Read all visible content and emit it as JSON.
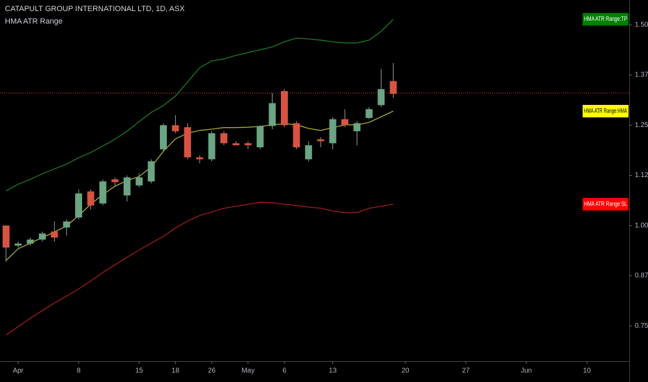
{
  "chart_data": {
    "type": "candlestick",
    "title": "CATAPULT GROUP INTERNATIONAL LTD, 1D, ASX",
    "subtitle": "HMA ATR Range",
    "up_color": "#6ba583",
    "down_color": "#d75442",
    "open": [
      1.0,
      0.95,
      0.955,
      0.965,
      0.985,
      0.995,
      1.02,
      1.085,
      1.055,
      1.115,
      1.075,
      1.1,
      1.11,
      1.19,
      1.25,
      1.245,
      1.17,
      1.165,
      1.23,
      1.205,
      1.205,
      1.195,
      1.248,
      1.335,
      1.255,
      1.165,
      1.215,
      1.205,
      1.265,
      1.235,
      1.268,
      1.3,
      1.36
    ],
    "high": [
      1.0,
      0.96,
      0.97,
      0.985,
      1.01,
      1.015,
      1.09,
      1.09,
      1.115,
      1.12,
      1.125,
      1.13,
      1.165,
      1.255,
      1.275,
      1.255,
      1.175,
      1.235,
      1.235,
      1.21,
      1.21,
      1.25,
      1.33,
      1.34,
      1.26,
      1.21,
      1.22,
      1.27,
      1.29,
      1.26,
      1.295,
      1.39,
      1.405
    ],
    "low": [
      0.91,
      0.945,
      0.95,
      0.96,
      0.96,
      0.975,
      1.015,
      1.04,
      1.05,
      1.1,
      1.06,
      1.095,
      1.105,
      1.185,
      1.23,
      1.165,
      1.155,
      1.16,
      1.2,
      1.2,
      1.19,
      1.19,
      1.24,
      1.245,
      1.19,
      1.16,
      1.195,
      1.19,
      1.245,
      1.2,
      1.265,
      1.295,
      1.318
    ],
    "close": [
      0.945,
      0.955,
      0.965,
      0.98,
      0.97,
      1.01,
      1.08,
      1.05,
      1.11,
      1.108,
      1.12,
      1.12,
      1.16,
      1.25,
      1.235,
      1.17,
      1.165,
      1.23,
      1.205,
      1.2,
      1.2,
      1.248,
      1.305,
      1.25,
      1.195,
      1.2,
      1.21,
      1.265,
      1.25,
      1.255,
      1.29,
      1.34,
      1.328
    ],
    "series": [
      {
        "name": "HMA ATR Range:TP",
        "color": "#1e7a1e",
        "label_color": "#008000",
        "label_text_color": "#ffffff",
        "values": [
          1.086,
          1.103,
          1.115,
          1.129,
          1.141,
          1.153,
          1.169,
          1.182,
          1.198,
          1.215,
          1.235,
          1.259,
          1.282,
          1.299,
          1.323,
          1.358,
          1.393,
          1.41,
          1.415,
          1.424,
          1.431,
          1.438,
          1.445,
          1.458,
          1.467,
          1.465,
          1.462,
          1.458,
          1.455,
          1.455,
          1.462,
          1.484,
          1.514
        ]
      },
      {
        "name": "HMA ATR Range:HMA",
        "color": "#a8a832",
        "label_color": "#ffff00",
        "label_text_color": "#000000",
        "values": [
          0.913,
          0.942,
          0.956,
          0.97,
          0.984,
          0.999,
          1.025,
          1.053,
          1.077,
          1.098,
          1.112,
          1.122,
          1.146,
          1.185,
          1.216,
          1.23,
          1.237,
          1.24,
          1.244,
          1.244,
          1.245,
          1.247,
          1.251,
          1.254,
          1.251,
          1.242,
          1.237,
          1.244,
          1.251,
          1.251,
          1.257,
          1.271,
          1.285
        ]
      },
      {
        "name": "HMA ATR Range:SL",
        "color": "#a01c1c",
        "label_color": "#ff0000",
        "label_text_color": "#ffffff",
        "values": [
          0.727,
          0.748,
          0.769,
          0.788,
          0.807,
          0.824,
          0.842,
          0.862,
          0.883,
          0.902,
          0.921,
          0.939,
          0.956,
          0.973,
          0.994,
          1.011,
          1.025,
          1.034,
          1.043,
          1.048,
          1.053,
          1.058,
          1.057,
          1.053,
          1.05,
          1.046,
          1.043,
          1.036,
          1.032,
          1.032,
          1.043,
          1.048,
          1.053
        ]
      }
    ],
    "price_line": 1.33,
    "price_line_color": "#d75442",
    "xlim": [
      -0.5,
      51.5
    ],
    "xticks": [
      {
        "value": 1,
        "label": "Apr"
      },
      {
        "value": 6,
        "label": "8"
      },
      {
        "value": 11,
        "label": "15"
      },
      {
        "value": 14,
        "label": "18"
      },
      {
        "value": 17,
        "label": "26"
      },
      {
        "value": 20,
        "label": "May"
      },
      {
        "value": 23,
        "label": "6"
      },
      {
        "value": 27,
        "label": "13"
      },
      {
        "value": 33,
        "label": "20"
      },
      {
        "value": 38,
        "label": "27"
      },
      {
        "value": 43,
        "label": "Jun"
      },
      {
        "value": 48,
        "label": "10"
      }
    ],
    "ylim": [
      0.662,
      1.562
    ],
    "yticks": [
      {
        "value": 0.75,
        "label": "0.750"
      },
      0.875,
      {
        "value": 1.0,
        "label": "1.000"
      },
      1.125,
      {
        "value": 1.25,
        "label": "1.250"
      },
      1.375,
      {
        "value": 1.5,
        "label": "1.500"
      }
    ]
  }
}
